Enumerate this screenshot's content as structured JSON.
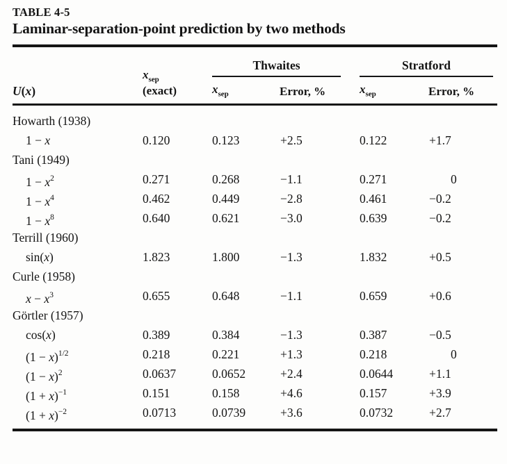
{
  "page": {
    "label": "TABLE 4-5",
    "title": "Laminar-separation-point prediction by two methods"
  },
  "header": {
    "u_col": "U(x)",
    "xsep_base": "x",
    "xsep_sub": "sep",
    "exact_line": "(exact)",
    "group_thwaites": "Thwaites",
    "group_stratford": "Stratford",
    "error_col": "Error, %"
  },
  "groups": [
    {
      "name": "Howarth (1938)",
      "rows": [
        {
          "formula": "1 − x",
          "sup": "",
          "exact": "0.120",
          "t_xsep": "0.123",
          "t_err": "+2.5",
          "s_xsep": "0.122",
          "s_err": "+1.7"
        }
      ]
    },
    {
      "name": "Tani (1949)",
      "rows": [
        {
          "formula": "1 − x",
          "sup": "2",
          "exact": "0.271",
          "t_xsep": "0.268",
          "t_err": "−1.1",
          "s_xsep": "0.271",
          "s_err": "0"
        },
        {
          "formula": "1 − x",
          "sup": "4",
          "exact": "0.462",
          "t_xsep": "0.449",
          "t_err": "−2.8",
          "s_xsep": "0.461",
          "s_err": "−0.2"
        },
        {
          "formula": "1 − x",
          "sup": "8",
          "exact": "0.640",
          "t_xsep": "0.621",
          "t_err": "−3.0",
          "s_xsep": "0.639",
          "s_err": "−0.2"
        }
      ]
    },
    {
      "name": "Terrill (1960)",
      "rows": [
        {
          "formula": "sin(x)",
          "sup": "",
          "exact": "1.823",
          "t_xsep": "1.800",
          "t_err": "−1.3",
          "s_xsep": "1.832",
          "s_err": "+0.5"
        }
      ]
    },
    {
      "name": "Curle (1958)",
      "rows": [
        {
          "formula": "x − x",
          "sup": "3",
          "exact": "0.655",
          "t_xsep": "0.648",
          "t_err": "−1.1",
          "s_xsep": "0.659",
          "s_err": "+0.6"
        }
      ]
    },
    {
      "name": "Görtler (1957)",
      "rows": [
        {
          "formula": "cos(x)",
          "sup": "",
          "exact": "0.389",
          "t_xsep": "0.384",
          "t_err": "−1.3",
          "s_xsep": "0.387",
          "s_err": "−0.5"
        },
        {
          "formula": "(1 − x)",
          "sup": "1/2",
          "exact": "0.218",
          "t_xsep": "0.221",
          "t_err": "+1.3",
          "s_xsep": "0.218",
          "s_err": "0"
        },
        {
          "formula": "(1 − x)",
          "sup": "2",
          "exact": "0.0637",
          "t_xsep": "0.0652",
          "t_err": "+2.4",
          "s_xsep": "0.0644",
          "s_err": "+1.1"
        },
        {
          "formula": "(1 + x)",
          "sup": "−1",
          "exact": "0.151",
          "t_xsep": "0.158",
          "t_err": "+4.6",
          "s_xsep": "0.157",
          "s_err": "+3.9"
        },
        {
          "formula": "(1 + x)",
          "sup": "−2",
          "exact": "0.0713",
          "t_xsep": "0.0739",
          "t_err": "+3.6",
          "s_xsep": "0.0732",
          "s_err": "+2.7"
        }
      ]
    }
  ],
  "colors": {
    "background": "#fdfdfc",
    "text": "#141414",
    "rule": "#151515"
  }
}
